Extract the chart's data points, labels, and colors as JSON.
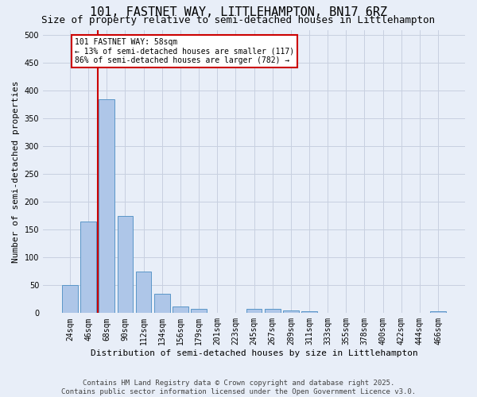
{
  "title": "101, FASTNET WAY, LITTLEHAMPTON, BN17 6RZ",
  "subtitle": "Size of property relative to semi-detached houses in Littlehampton",
  "xlabel": "Distribution of semi-detached houses by size in Littlehampton",
  "ylabel": "Number of semi-detached properties",
  "categories": [
    "24sqm",
    "46sqm",
    "68sqm",
    "90sqm",
    "112sqm",
    "134sqm",
    "156sqm",
    "179sqm",
    "201sqm",
    "223sqm",
    "245sqm",
    "267sqm",
    "289sqm",
    "311sqm",
    "333sqm",
    "355sqm",
    "378sqm",
    "400sqm",
    "422sqm",
    "444sqm",
    "466sqm"
  ],
  "values": [
    51,
    165,
    385,
    175,
    75,
    35,
    12,
    8,
    0,
    0,
    8,
    8,
    5,
    3,
    0,
    0,
    0,
    0,
    0,
    0,
    4
  ],
  "bar_color": "#aec6e8",
  "bar_edge_color": "#5a96c8",
  "vline_x": 1.5,
  "vline_color": "#cc0000",
  "annotation_text": "101 FASTNET WAY: 58sqm\n← 13% of semi-detached houses are smaller (117)\n86% of semi-detached houses are larger (782) →",
  "annotation_box_color": "#ffffff",
  "annotation_box_edge_color": "#cc0000",
  "ylim": [
    0,
    510
  ],
  "yticks": [
    0,
    50,
    100,
    150,
    200,
    250,
    300,
    350,
    400,
    450,
    500
  ],
  "footer": "Contains HM Land Registry data © Crown copyright and database right 2025.\nContains public sector information licensed under the Open Government Licence v3.0.",
  "bg_color": "#e8eef8",
  "grid_color": "#c8d0e0",
  "title_fontsize": 11,
  "subtitle_fontsize": 9,
  "axis_label_fontsize": 8,
  "tick_fontsize": 7,
  "annot_fontsize": 7,
  "footer_fontsize": 6.5
}
